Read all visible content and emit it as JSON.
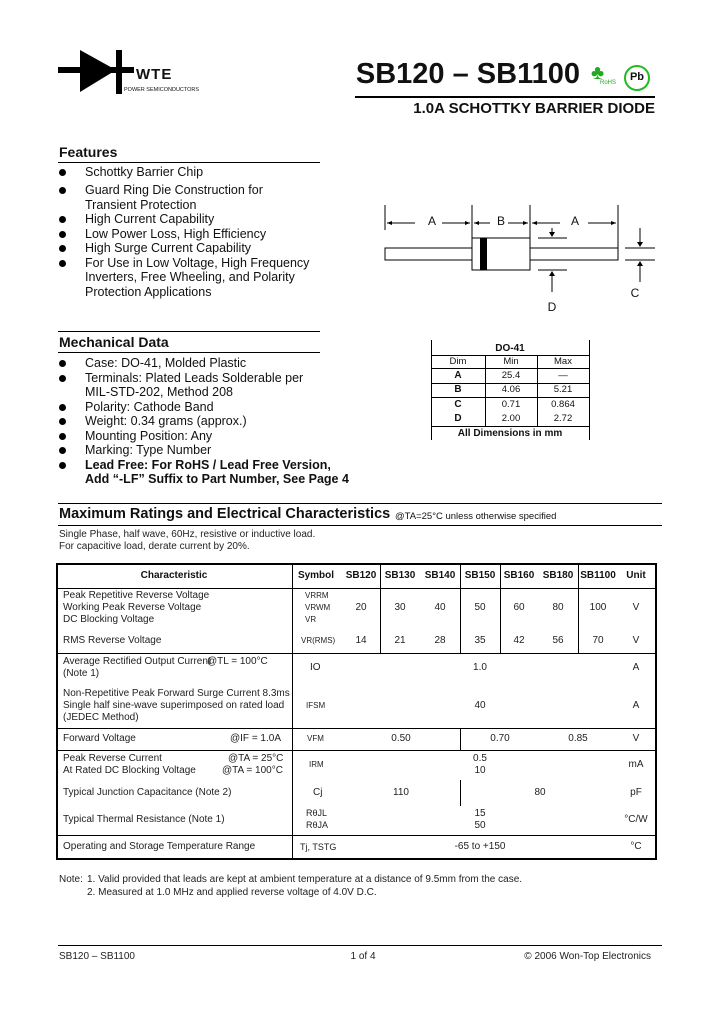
{
  "logo": {
    "brand": "WTE",
    "tagline": "POWER SEMICONDUCTORS"
  },
  "header": {
    "title": "SB120 – SB1100",
    "subtitle": "1.0A SCHOTTKY BARRIER DIODE",
    "rohs": "RoHS",
    "pb": "Pb"
  },
  "features": {
    "heading": "Features",
    "items": [
      "Schottky Barrier Chip",
      "Guard Ring Die Construction for",
      "Transient Protection",
      "High Current Capability",
      "Low Power Loss, High Efficiency",
      "High Surge Current Capability",
      "For Use in Low Voltage, High Frequency",
      "Inverters, Free Wheeling, and Polarity",
      "Protection Applications"
    ]
  },
  "mechanical": {
    "heading": "Mechanical Data",
    "items": [
      "Case: DO-41, Molded Plastic",
      "Terminals: Plated Leads Solderable per",
      "MIL-STD-202, Method 208",
      "Polarity: Cathode Band",
      "Weight: 0.34 grams (approx.)",
      "Mounting Position: Any",
      "Marking: Type Number",
      "Lead Free: For RoHS / Lead Free Version,",
      "Add “-LF” Suffix to Part Number, See Page 4"
    ]
  },
  "diagram": {
    "labels": [
      "A",
      "B",
      "A",
      "D",
      "C"
    ]
  },
  "package_table": {
    "title": "DO-41",
    "headers": [
      "Dim",
      "Min",
      "Max"
    ],
    "rows": [
      [
        "A",
        "25.4",
        "—"
      ],
      [
        "B",
        "4.06",
        "5.21"
      ],
      [
        "C",
        "0.71",
        "0.864"
      ],
      [
        "D",
        "2.00",
        "2.72"
      ]
    ],
    "footer": "All Dimensions in mm"
  },
  "ratings": {
    "heading": "Maximum Ratings and Electrical Characteristics",
    "condition": "@TA=25°C unless otherwise specified",
    "note1": "Single Phase, half wave, 60Hz, resistive or inductive load.",
    "note2": "For capacitive load, derate current by 20%."
  },
  "table": {
    "headers": [
      "Characteristic",
      "Symbol",
      "SB120",
      "SB130",
      "SB140",
      "SB150",
      "SB160",
      "SB180",
      "SB1100",
      "Unit"
    ],
    "v1": {
      "labels": [
        "Peak Repetitive Reverse Voltage",
        "Working Peak Reverse Voltage",
        "DC Blocking Voltage"
      ],
      "symbols": [
        "VRRM",
        "VRWM",
        "VR"
      ],
      "values": [
        "20",
        "30",
        "40",
        "50",
        "60",
        "80",
        "100"
      ],
      "unit": "V"
    },
    "v2": {
      "label": "RMS Reverse Voltage",
      "symbol": "VR(RMS)",
      "values": [
        "14",
        "21",
        "28",
        "35",
        "42",
        "56",
        "70"
      ],
      "unit": "V"
    },
    "io": {
      "label": "Average Rectified Output Current",
      "cond": "@TL = 100°C",
      "note": "(Note 1)",
      "symbol": "IO",
      "value": "1.0",
      "unit": "A"
    },
    "ifsm": {
      "labels": [
        "Non-Repetitive Peak Forward Surge Current 8.3ms",
        "Single half sine-wave superimposed on rated load",
        "(JEDEC Method)"
      ],
      "symbol": "IFSM",
      "value": "40",
      "unit": "A"
    },
    "vf": {
      "label": "Forward Voltage",
      "cond": "@IF = 1.0A",
      "symbol": "VFM",
      "values": [
        "0.50",
        "0.70",
        "0.85"
      ],
      "unit": "V"
    },
    "irm": {
      "labels": [
        "Peak Reverse Current",
        "At Rated DC Blocking Voltage"
      ],
      "conds": [
        "@TA = 25°C",
        "@TA = 100°C"
      ],
      "symbol": "IRM",
      "values": [
        "0.5",
        "10"
      ],
      "unit": "mA"
    },
    "cj": {
      "label": "Typical Junction Capacitance (Note 2)",
      "symbol": "Cj",
      "values": [
        "110",
        "80"
      ],
      "unit": "pF"
    },
    "rth": {
      "label": "Typical Thermal Resistance (Note 1)",
      "symbols": [
        "RθJL",
        "RθJA"
      ],
      "values": [
        "15",
        "50"
      ],
      "unit": "°C/W"
    },
    "temp": {
      "label": "Operating and Storage Temperature Range",
      "symbol": "Tj, TSTG",
      "value": "-65 to +150",
      "unit": "°C"
    }
  },
  "notes": {
    "label": "Note:",
    "items": [
      "1. Valid provided that leads are kept at ambient temperature at a distance of 9.5mm from the case.",
      "2. Measured at 1.0 MHz and applied reverse voltage of 4.0V D.C."
    ]
  },
  "footer": {
    "left": "SB120 – SB1100",
    "center": "1 of 4",
    "right": "© 2006 Won-Top Electronics"
  }
}
